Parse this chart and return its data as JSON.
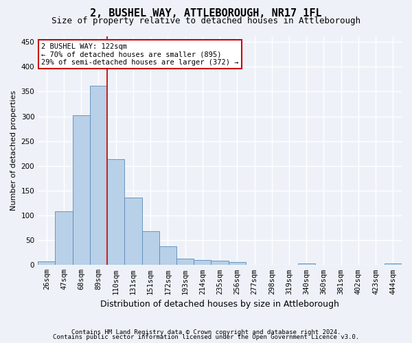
{
  "title1": "2, BUSHEL WAY, ATTLEBOROUGH, NR17 1FL",
  "title2": "Size of property relative to detached houses in Attleborough",
  "xlabel": "Distribution of detached houses by size in Attleborough",
  "ylabel": "Number of detached properties",
  "categories": [
    "26sqm",
    "47sqm",
    "68sqm",
    "89sqm",
    "110sqm",
    "131sqm",
    "151sqm",
    "172sqm",
    "193sqm",
    "214sqm",
    "235sqm",
    "256sqm",
    "277sqm",
    "298sqm",
    "319sqm",
    "340sqm",
    "360sqm",
    "381sqm",
    "402sqm",
    "423sqm",
    "444sqm"
  ],
  "values": [
    8,
    108,
    302,
    362,
    213,
    136,
    68,
    38,
    13,
    10,
    9,
    6,
    0,
    0,
    0,
    3,
    0,
    0,
    0,
    0,
    3
  ],
  "bar_color": "#b8d0e8",
  "bar_edge_color": "#5a8ab8",
  "vline_color": "#cc2222",
  "vline_x_index": 4,
  "annotation_text": "2 BUSHEL WAY: 122sqm\n← 70% of detached houses are smaller (895)\n29% of semi-detached houses are larger (372) →",
  "annotation_box_facecolor": "#ffffff",
  "annotation_box_edgecolor": "#cc0000",
  "ylim_max": 462,
  "yticks": [
    0,
    50,
    100,
    150,
    200,
    250,
    300,
    350,
    400,
    450
  ],
  "footer1": "Contains HM Land Registry data © Crown copyright and database right 2024.",
  "footer2": "Contains public sector information licensed under the Open Government Licence v3.0.",
  "bg_color": "#eef2f8",
  "grid_color": "#ffffff",
  "title1_fontsize": 11,
  "title2_fontsize": 9,
  "xlabel_fontsize": 9,
  "ylabel_fontsize": 8,
  "tick_fontsize": 7.5,
  "footer_fontsize": 6.5
}
